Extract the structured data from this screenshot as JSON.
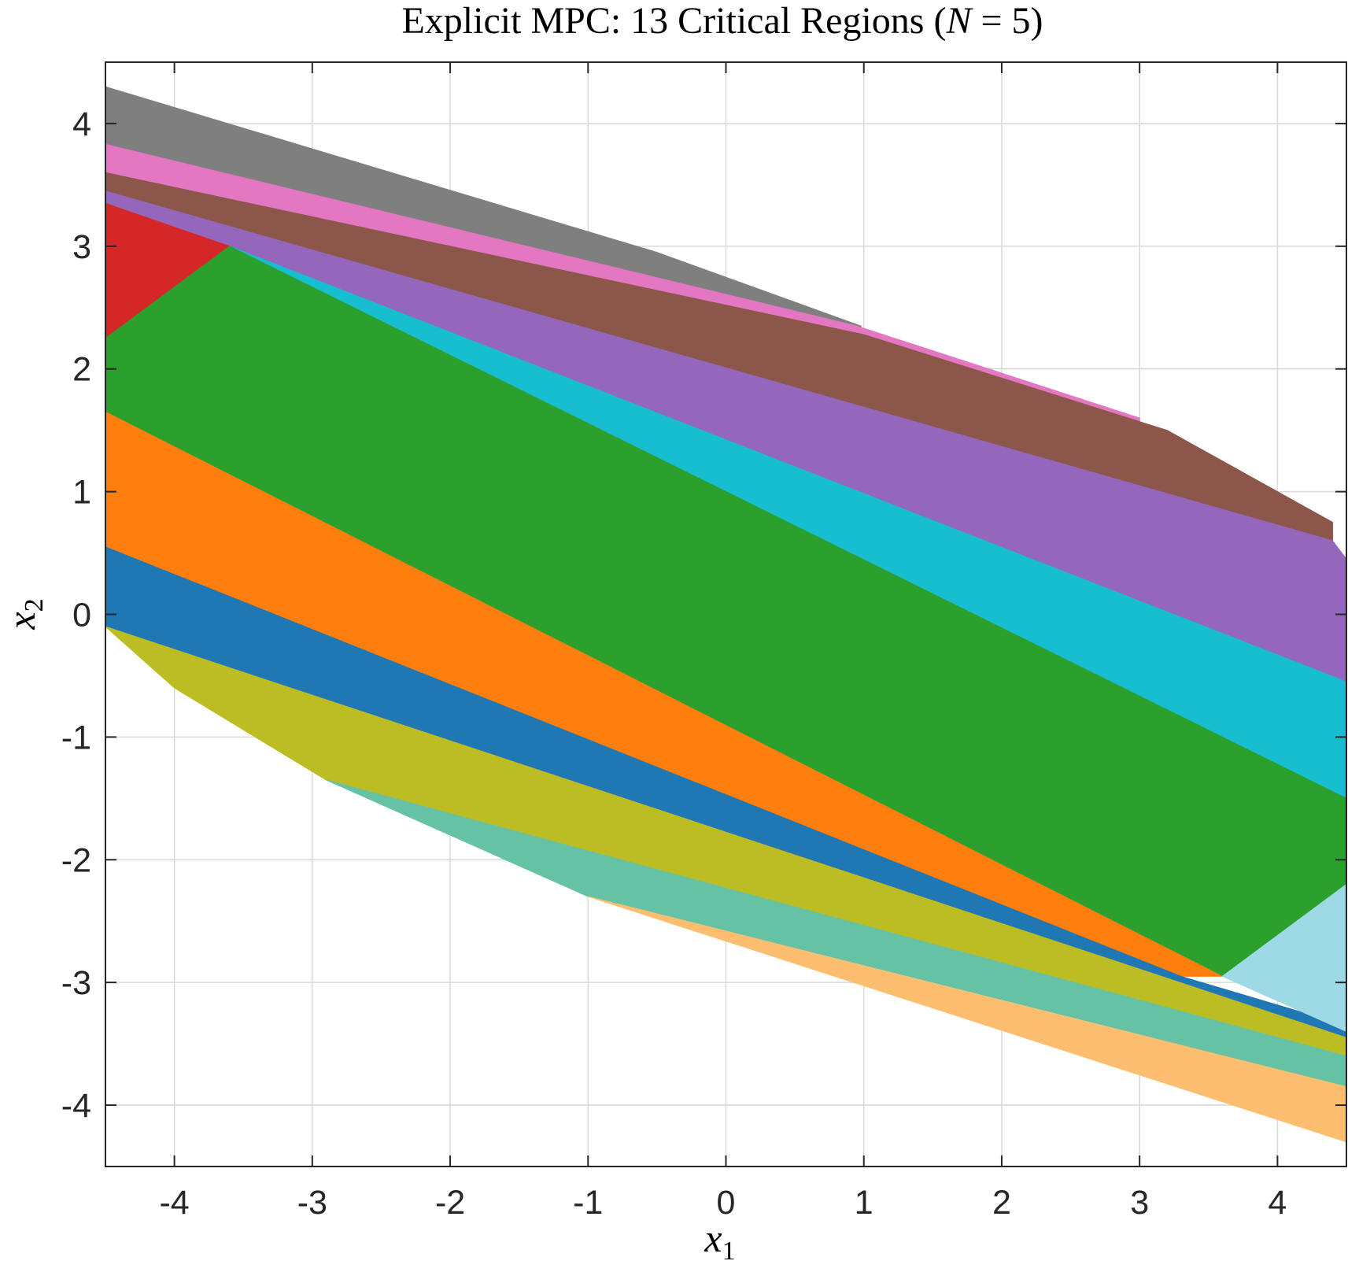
{
  "chart_data": {
    "type": "area",
    "title": "Explicit MPC: 13 Critical Regions (N = 5)",
    "title_parts": {
      "prefix": "Explicit MPC: 13 Critical Regions (",
      "var": "N",
      "suffix": " = 5)"
    },
    "xlabel": {
      "base": "x",
      "sub": "1"
    },
    "ylabel": {
      "base": "x",
      "sub": "2"
    },
    "xlim": [
      -4.5,
      4.5
    ],
    "ylim": [
      -4.5,
      4.5
    ],
    "xticks": [
      -4,
      -3,
      -2,
      -1,
      0,
      1,
      2,
      3,
      4
    ],
    "yticks": [
      -4,
      -3,
      -2,
      -1,
      0,
      1,
      2,
      3,
      4
    ],
    "grid": true,
    "regions": [
      {
        "name": "",
        "color": "#7f7f7f",
        "vertices": [
          [
            -4.5,
            4.3
          ],
          [
            -4.5,
            3.82
          ],
          [
            0.98,
            2.28
          ],
          [
            0.98,
            2.35
          ],
          [
            -0.5,
            2.95
          ]
        ]
      },
      {
        "name": "",
        "color": "#e377c2",
        "vertices": [
          [
            -4.5,
            3.83
          ],
          [
            -4.5,
            3.6
          ],
          [
            3.0,
            1.35
          ],
          [
            3.0,
            1.6
          ],
          [
            0.95,
            2.35
          ]
        ]
      },
      {
        "name": "",
        "color": "#8c564b",
        "vertices": [
          [
            -4.5,
            3.6
          ],
          [
            -4.5,
            3.45
          ],
          [
            4.4,
            0.55
          ],
          [
            4.4,
            0.75
          ],
          [
            3.2,
            1.5
          ],
          [
            1.0,
            2.28
          ]
        ]
      },
      {
        "name": "",
        "color": "#9467bd",
        "vertices": [
          [
            -4.5,
            3.45
          ],
          [
            -4.5,
            3.35
          ],
          [
            -3.6,
            3.0
          ],
          [
            4.5,
            -0.55
          ],
          [
            4.5,
            0.45
          ],
          [
            4.4,
            0.6
          ]
        ]
      },
      {
        "name": "",
        "color": "#d62728",
        "vertices": [
          [
            -4.5,
            3.35
          ],
          [
            -4.5,
            2.25
          ],
          [
            -3.6,
            3.0
          ]
        ]
      },
      {
        "name": "",
        "color": "#17becf",
        "vertices": [
          [
            -3.6,
            3.0
          ],
          [
            4.5,
            -1.5
          ],
          [
            4.5,
            -0.55
          ]
        ]
      },
      {
        "name": "",
        "color": "#2ca02c",
        "vertices": [
          [
            -4.5,
            2.25
          ],
          [
            -3.6,
            3.0
          ],
          [
            4.5,
            -1.5
          ],
          [
            4.5,
            -2.2
          ],
          [
            3.6,
            -2.95
          ],
          [
            -4.5,
            1.65
          ]
        ]
      },
      {
        "name": "",
        "color": "#ff7f0e",
        "vertices": [
          [
            -4.5,
            1.65
          ],
          [
            3.6,
            -2.95
          ],
          [
            3.3,
            -2.95
          ],
          [
            -4.5,
            0.55
          ]
        ]
      },
      {
        "name": "",
        "color": "#1f77b4",
        "vertices": [
          [
            -4.5,
            0.55
          ],
          [
            3.3,
            -2.95
          ],
          [
            4.5,
            -3.35
          ],
          [
            4.5,
            -3.45
          ],
          [
            -4.5,
            -0.1
          ]
        ]
      },
      {
        "name": "",
        "color": "#9edae5",
        "vertices": [
          [
            3.6,
            -2.95
          ],
          [
            4.5,
            -2.2
          ],
          [
            4.5,
            -3.4
          ]
        ]
      },
      {
        "name": "",
        "color": "#bcbd22",
        "vertices": [
          [
            -4.5,
            -0.1
          ],
          [
            4.5,
            -3.45
          ],
          [
            4.5,
            -3.6
          ],
          [
            -2.9,
            -1.35
          ],
          [
            -4.0,
            -0.6
          ]
        ]
      },
      {
        "name": "",
        "color": "#66c2a5",
        "vertices": [
          [
            -2.9,
            -1.35
          ],
          [
            4.5,
            -3.6
          ],
          [
            4.5,
            -3.85
          ],
          [
            -1.0,
            -2.3
          ]
        ]
      },
      {
        "name": "",
        "color": "#fdbf6f",
        "vertices": [
          [
            -1.0,
            -2.3
          ],
          [
            4.5,
            -3.85
          ],
          [
            4.5,
            -4.3
          ]
        ]
      }
    ]
  }
}
